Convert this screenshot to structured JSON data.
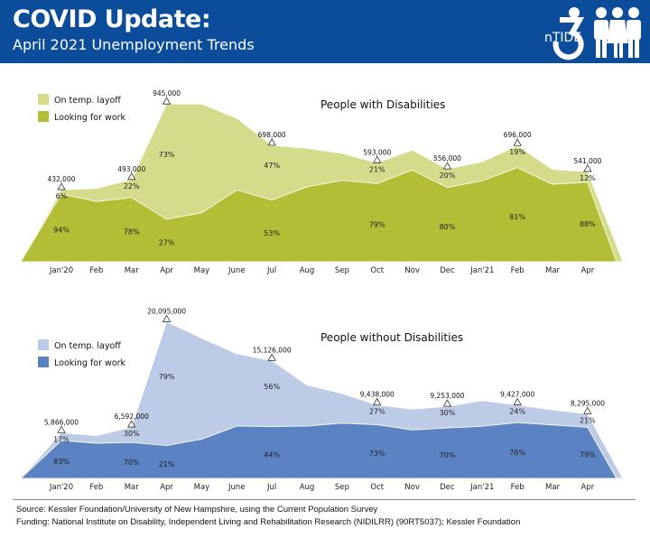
{
  "header": {
    "title": "COVID Update:",
    "subtitle": "April 2021 Unemployment Trends",
    "logo_text": "nTIDE",
    "color": "#0b4c9b"
  },
  "footer": {
    "source": "Source: Kessler Foundation/University of New Hampshire, using the Current Population Survey",
    "funding": "Funding: National Institute on Disability, Independent Living and Rehabilitation Research (NIDILRR) (90RT5037); Kessler Foundation"
  },
  "chart_data": [
    {
      "type": "area",
      "stacked": true,
      "title": "People with Disabilities",
      "categories": [
        "Jan'20",
        "Feb",
        "Mar",
        "Apr",
        "May",
        "June",
        "Jul",
        "Aug",
        "Sep",
        "Oct",
        "Nov",
        "Dec",
        "Jan'21",
        "Feb",
        "Mar",
        "Apr"
      ],
      "ylim": [
        0,
        1000000
      ],
      "legend_position": "top-left",
      "totals": [
        432000,
        440000,
        493000,
        945000,
        945000,
        860000,
        698000,
        680000,
        650000,
        593000,
        670000,
        556000,
        600000,
        696000,
        553000,
        541000
      ],
      "total_labels": [
        "432,000",
        null,
        "493,000",
        "945,000",
        null,
        null,
        "698,000",
        null,
        null,
        "593,000",
        null,
        "556,000",
        null,
        "696,000",
        null,
        "541,000"
      ],
      "series": [
        {
          "name": "Looking for work",
          "color": "#b3bd35",
          "share_pct": [
            94,
            82,
            78,
            27,
            31,
            50,
            53,
            66,
            75,
            79,
            82,
            80,
            81,
            81,
            84,
            88
          ],
          "labels": [
            "94%",
            null,
            "78%",
            "27%",
            null,
            null,
            "53%",
            null,
            null,
            "79%",
            null,
            "80%",
            null,
            "81%",
            null,
            "88%"
          ]
        },
        {
          "name": "On temp. layoff",
          "color": "#d4dc8c",
          "share_pct": [
            6,
            18,
            22,
            73,
            69,
            50,
            47,
            34,
            25,
            21,
            18,
            20,
            19,
            19,
            16,
            12
          ],
          "labels": [
            "6%",
            null,
            "22%",
            "73%",
            null,
            null,
            "47%",
            null,
            null,
            "21%",
            null,
            "20%",
            null,
            "19%",
            null,
            "12%"
          ]
        }
      ]
    },
    {
      "type": "area",
      "stacked": true,
      "title": "People without Disabilities",
      "categories": [
        "Jan'20",
        "Feb",
        "Mar",
        "Apr",
        "May",
        "June",
        "Jul",
        "Aug",
        "Sep",
        "Oct",
        "Nov",
        "Dec",
        "Jan'21",
        "Feb",
        "Mar",
        "Apr"
      ],
      "ylim": [
        0,
        22000000
      ],
      "legend_position": "top-left",
      "totals": [
        5866000,
        5500000,
        6592000,
        20095000,
        18000000,
        16000000,
        15126000,
        12000000,
        10900000,
        9438000,
        8900000,
        9253000,
        10000000,
        9427000,
        8800000,
        8295000
      ],
      "total_labels": [
        "5,866,000",
        null,
        "6,592,000",
        "20,095,000",
        null,
        null,
        "15,126,000",
        null,
        null,
        "9,438,000",
        null,
        "9,253,000",
        null,
        "9,427,000",
        null,
        "8,295,000"
      ],
      "series": [
        {
          "name": "Looking for work",
          "color": "#5b82c2",
          "share_pct": [
            83,
            82,
            70,
            21,
            28,
            42,
            44,
            56,
            65,
            73,
            70,
            70,
            67,
            76,
            78,
            79
          ],
          "labels": [
            "83%",
            null,
            "70%",
            "21%",
            null,
            null,
            "44%",
            null,
            null,
            "73%",
            null,
            "70%",
            null,
            "76%",
            null,
            "79%"
          ]
        },
        {
          "name": "On temp. layoff",
          "color": "#bdcbe7",
          "share_pct": [
            17,
            18,
            30,
            79,
            72,
            58,
            56,
            44,
            35,
            27,
            30,
            30,
            33,
            24,
            22,
            21
          ],
          "labels": [
            "17%",
            null,
            "30%",
            "79%",
            null,
            null,
            "56%",
            null,
            null,
            "27%",
            null,
            "30%",
            null,
            "24%",
            null,
            "21%"
          ]
        }
      ]
    }
  ]
}
